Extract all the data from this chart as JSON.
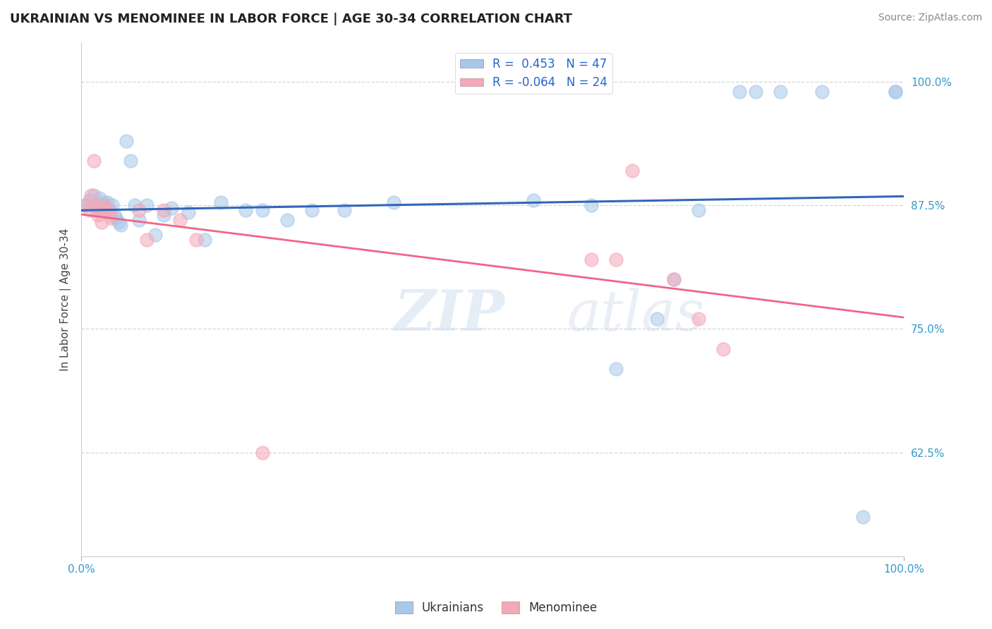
{
  "title": "UKRAINIAN VS MENOMINEE IN LABOR FORCE | AGE 30-34 CORRELATION CHART",
  "source": "Source: ZipAtlas.com",
  "ylabel": "In Labor Force | Age 30-34",
  "xlim": [
    0.0,
    1.0
  ],
  "ylim": [
    0.52,
    1.04
  ],
  "yticks": [
    0.625,
    0.75,
    0.875,
    1.0
  ],
  "ytick_labels": [
    "62.5%",
    "75.0%",
    "87.5%",
    "100.0%"
  ],
  "legend_labels": [
    "Ukrainians",
    "Menominee"
  ],
  "R_blue": 0.453,
  "N_blue": 47,
  "R_pink": -0.064,
  "N_pink": 24,
  "blue_color": "#a8c8e8",
  "pink_color": "#f4a8b8",
  "blue_line_color": "#3366bb",
  "pink_line_color": "#ee6688",
  "watermark_zip": "ZIP",
  "watermark_atlas": "atlas",
  "background_color": "#ffffff",
  "blue_x": [
    0.005,
    0.01,
    0.015,
    0.018,
    0.02,
    0.022,
    0.025,
    0.027,
    0.028,
    0.03,
    0.032,
    0.035,
    0.038,
    0.04,
    0.042,
    0.045,
    0.048,
    0.055,
    0.06,
    0.065,
    0.07,
    0.08,
    0.09,
    0.1,
    0.11,
    0.13,
    0.15,
    0.17,
    0.2,
    0.22,
    0.25,
    0.28,
    0.32,
    0.38,
    0.55,
    0.62,
    0.65,
    0.7,
    0.72,
    0.75,
    0.8,
    0.82,
    0.85,
    0.9,
    0.95,
    0.99,
    0.99
  ],
  "blue_y": [
    0.875,
    0.88,
    0.885,
    0.87,
    0.875,
    0.882,
    0.87,
    0.878,
    0.875,
    0.872,
    0.878,
    0.87,
    0.875,
    0.865,
    0.862,
    0.858,
    0.855,
    0.94,
    0.92,
    0.875,
    0.86,
    0.875,
    0.845,
    0.865,
    0.872,
    0.868,
    0.84,
    0.878,
    0.87,
    0.87,
    0.86,
    0.87,
    0.87,
    0.878,
    0.88,
    0.875,
    0.71,
    0.76,
    0.8,
    0.87,
    0.99,
    0.99,
    0.99,
    0.99,
    0.56,
    0.99,
    0.99
  ],
  "pink_x": [
    0.005,
    0.01,
    0.012,
    0.015,
    0.018,
    0.02,
    0.022,
    0.025,
    0.028,
    0.03,
    0.033,
    0.036,
    0.07,
    0.08,
    0.1,
    0.12,
    0.14,
    0.22,
    0.62,
    0.65,
    0.67,
    0.72,
    0.75,
    0.78
  ],
  "pink_y": [
    0.875,
    0.87,
    0.885,
    0.92,
    0.875,
    0.865,
    0.872,
    0.858,
    0.875,
    0.868,
    0.87,
    0.862,
    0.87,
    0.84,
    0.87,
    0.86,
    0.84,
    0.625,
    0.82,
    0.82,
    0.91,
    0.8,
    0.76,
    0.73
  ]
}
